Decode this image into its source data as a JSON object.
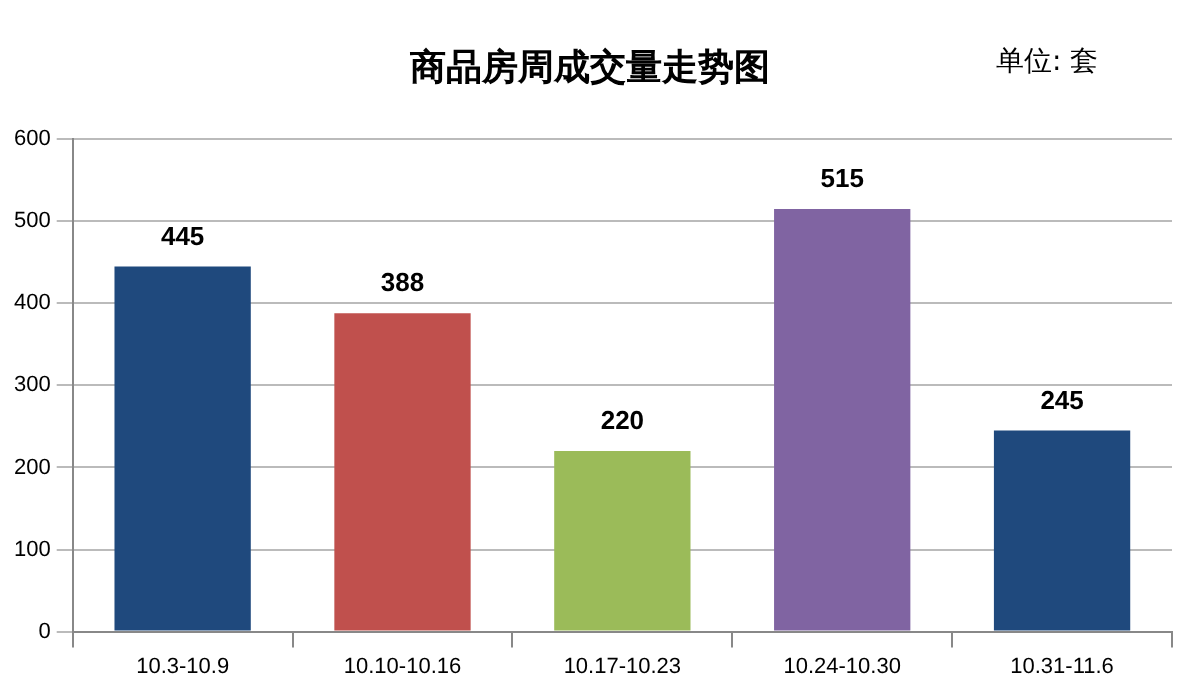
{
  "chart_data": {
    "type": "bar",
    "title": "商品房周成交量走势图",
    "annotations": [
      "单位: 套"
    ],
    "categories": [
      "10.3-10.9",
      "10.10-10.16",
      "10.17-10.23",
      "10.24-10.30",
      "10.31-11.6"
    ],
    "values": [
      445,
      388,
      220,
      515,
      245
    ],
    "colors": [
      "#1f497d",
      "#c0504d",
      "#9bbb59",
      "#8064a2",
      "#1f497d"
    ],
    "ylim": [
      0,
      600
    ],
    "yticks": [
      0,
      100,
      200,
      300,
      400,
      500,
      600
    ],
    "grid": "y",
    "data_labels": true,
    "legend": false
  }
}
